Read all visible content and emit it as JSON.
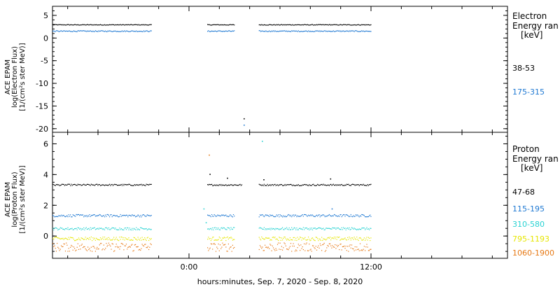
{
  "x_axis": {
    "label": "hours:minutes, Sep.  7, 2020 - Sep.  8, 2020",
    "ticks": [
      {
        "hours": 0,
        "label": "0:00"
      },
      {
        "hours": 12,
        "label": "12:00"
      }
    ],
    "range_hours": [
      -9,
      21
    ],
    "minor_tick_step_hours": 2
  },
  "colors": {
    "black": "#000000",
    "blue": "#1e78d2",
    "cyan": "#28d2d2",
    "yellow": "#e6e600",
    "orange": "#e67814"
  },
  "panels": [
    {
      "id": "electron",
      "ylabel_lines": [
        "ACE EPAM",
        "log(Electron Flux)",
        "[1/(cm²s ster MeV)]"
      ],
      "legend_title": [
        "Electron",
        "Energy ran",
        "[keV]"
      ],
      "chart_data": {
        "type": "scatter",
        "ylim": [
          -20.8,
          7
        ],
        "yticks": [
          -20,
          -15,
          -10,
          -5,
          0,
          5
        ],
        "series": [
          {
            "name": "38-53",
            "color": "#000000",
            "level": 3.0,
            "noise": 0.08,
            "segments": [
              [
                -9,
                -2.5
              ],
              [
                1.2,
                3.0
              ],
              [
                4.6,
                12.0
              ]
            ]
          },
          {
            "name": "175-315",
            "color": "#1e78d2",
            "level": 1.6,
            "noise": 0.12,
            "segments": [
              [
                -9,
                -2.5
              ],
              [
                1.2,
                3.0
              ],
              [
                4.6,
                12.0
              ]
            ]
          }
        ],
        "outliers": [
          {
            "hours": 3.6,
            "value": -17.7,
            "color": "#000000"
          },
          {
            "hours": 3.6,
            "value": -19.1,
            "color": "#1e78d2"
          }
        ]
      }
    },
    {
      "id": "proton",
      "ylabel_lines": [
        "ACE EPAM",
        "log(Proton Flux)",
        "[1/(cm²s ster MeV)]"
      ],
      "legend_title": [
        "Proton",
        "Energy ran",
        "[keV]"
      ],
      "chart_data": {
        "type": "scatter",
        "ylim": [
          -1.45,
          6.75
        ],
        "yticks": [
          0,
          2,
          4,
          6
        ],
        "series": [
          {
            "name": "47-68",
            "color": "#000000",
            "level": 3.35,
            "noise": 0.05,
            "segments": [
              [
                -9,
                -2.5
              ],
              [
                1.2,
                3.5
              ],
              [
                4.6,
                12.0
              ]
            ]
          },
          {
            "name": "115-195",
            "color": "#1e78d2",
            "level": 1.35,
            "noise": 0.08,
            "segments": [
              [
                -9,
                -2.5
              ],
              [
                1.2,
                3.0
              ],
              [
                4.6,
                12.0
              ]
            ]
          },
          {
            "name": "310-580",
            "color": "#28d2d2",
            "level": 0.5,
            "noise": 0.08,
            "segments": [
              [
                -9,
                -2.5
              ],
              [
                1.2,
                3.0
              ],
              [
                4.6,
                12.0
              ]
            ]
          },
          {
            "name": "795-1193",
            "color": "#e6e600",
            "level": -0.15,
            "noise": 0.12,
            "segments": [
              [
                -9,
                -2.5
              ],
              [
                1.2,
                3.0
              ],
              [
                4.6,
                12.0
              ]
            ]
          },
          {
            "name": "1060-1900",
            "color": "#e67814",
            "level": -0.7,
            "noise": 0.28,
            "segments": [
              [
                -9,
                -2.5
              ],
              [
                1.2,
                3.0
              ],
              [
                4.6,
                12.0
              ]
            ]
          }
        ],
        "outliers": [
          {
            "hours": 1.3,
            "value": 5.3,
            "color": "#e67814"
          },
          {
            "hours": 4.8,
            "value": 6.2,
            "color": "#28d2d2"
          },
          {
            "hours": 1.35,
            "value": 4.05,
            "color": "#000000"
          },
          {
            "hours": 2.5,
            "value": 3.8,
            "color": "#000000"
          },
          {
            "hours": 4.9,
            "value": 3.7,
            "color": "#000000"
          },
          {
            "hours": 9.3,
            "value": 3.75,
            "color": "#000000"
          },
          {
            "hours": 9.4,
            "value": 1.8,
            "color": "#1e78d2"
          },
          {
            "hours": 0.95,
            "value": 1.8,
            "color": "#28d2d2"
          },
          {
            "hours": 1.1,
            "value": 0.9,
            "color": "#28d2d2"
          }
        ]
      }
    }
  ]
}
